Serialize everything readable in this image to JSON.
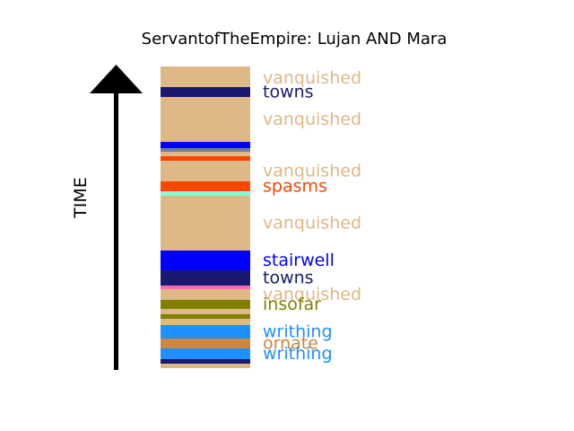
{
  "chart_data": {
    "type": "stacked-bar",
    "title": "ServantofTheEmpire: Lujan AND Mara",
    "axis_label": "TIME",
    "axis_direction": "up",
    "segments": [
      {
        "label": "vanquished",
        "color": "#DEB887",
        "start": 0,
        "end": 23
      },
      {
        "label": "towns",
        "color": "#191970",
        "start": 23,
        "end": 34
      },
      {
        "label": "vanquished",
        "color": "#DEB887",
        "start": 34,
        "end": 84
      },
      {
        "label": "",
        "color": "#0000FF",
        "start": 84,
        "end": 91
      },
      {
        "label": "",
        "color": "#708090",
        "start": 91,
        "end": 95
      },
      {
        "label": "",
        "color": "#DEB887",
        "start": 95,
        "end": 100
      },
      {
        "label": "",
        "color": "#FF4500",
        "start": 100,
        "end": 105
      },
      {
        "label": "vanquished",
        "color": "#DEB887",
        "start": 105,
        "end": 128
      },
      {
        "label": "spasms",
        "color": "#FF4500",
        "start": 128,
        "end": 139
      },
      {
        "label": "",
        "color": "#7FFFD4",
        "start": 139,
        "end": 144
      },
      {
        "label": "vanquished",
        "color": "#DEB887",
        "start": 144,
        "end": 205
      },
      {
        "label": "stairwell",
        "color": "#0000FF",
        "start": 205,
        "end": 227
      },
      {
        "label": "towns",
        "color": "#191970",
        "start": 227,
        "end": 244
      },
      {
        "label": "",
        "color": "#FF69B4",
        "start": 244,
        "end": 248
      },
      {
        "label": "vanquished",
        "color": "#DEB887",
        "start": 248,
        "end": 260
      },
      {
        "label": "insofar",
        "color": "#808000",
        "start": 260,
        "end": 270
      },
      {
        "label": "",
        "color": "#DEB887",
        "start": 270,
        "end": 276
      },
      {
        "label": "",
        "color": "#808000",
        "start": 276,
        "end": 281
      },
      {
        "label": "",
        "color": "#DEB887",
        "start": 281,
        "end": 288
      },
      {
        "label": "writhing",
        "color": "#1E90FF",
        "start": 288,
        "end": 303
      },
      {
        "label": "ornate",
        "color": "#CD853F",
        "start": 303,
        "end": 314
      },
      {
        "label": "writhing",
        "color": "#1E90FF",
        "start": 314,
        "end": 326
      },
      {
        "label": "",
        "color": "#191970",
        "start": 326,
        "end": 331
      },
      {
        "label": "",
        "color": "#DEB887",
        "start": 331,
        "end": 336
      }
    ],
    "total": 336
  }
}
